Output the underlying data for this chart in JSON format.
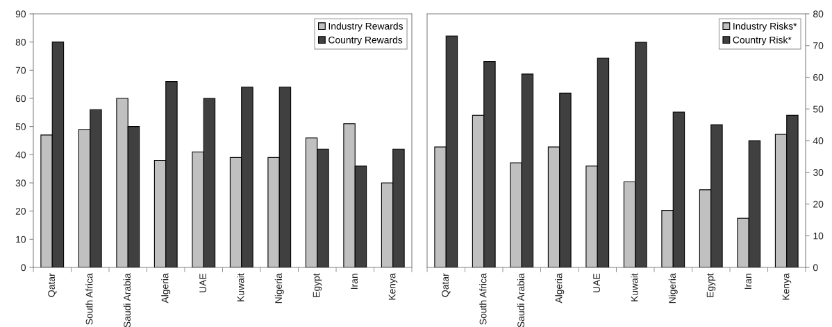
{
  "chart_data": [
    {
      "type": "bar",
      "categories": [
        "Qatar",
        "South Africa",
        "Saudi Arabia",
        "Algeria",
        "UAE",
        "Kuwait",
        "Nigeria",
        "Egypt",
        "Iran",
        "Kenya"
      ],
      "series": [
        {
          "name": "Industry Rewards",
          "color": "#c0c0c0",
          "values": [
            47,
            49,
            60,
            38,
            41,
            39,
            39,
            46,
            51,
            30
          ]
        },
        {
          "name": "Country Rewards",
          "color": "#404040",
          "values": [
            80,
            56,
            50,
            66,
            60,
            64,
            64,
            42,
            36,
            42
          ]
        }
      ],
      "ylim": [
        0,
        90
      ],
      "yticks": [
        0,
        10,
        20,
        30,
        40,
        50,
        60,
        70,
        80,
        90
      ],
      "legend": "top right"
    },
    {
      "type": "bar",
      "categories": [
        "Qatar",
        "South Africa",
        "Saudi Arabia",
        "Algeria",
        "UAE",
        "Kuwait",
        "Nigeria",
        "Egypt",
        "Iran",
        "Kenya"
      ],
      "series": [
        {
          "name": "Industry Risks*",
          "color": "#c0c0c0",
          "axis": "y2",
          "values": [
            38,
            48,
            33,
            38,
            32,
            27,
            18,
            24.5,
            15.5,
            42
          ]
        },
        {
          "name": "Country Risk*",
          "color": "#404040",
          "axis": "y2",
          "values": [
            73,
            65,
            61,
            55,
            66,
            71,
            49,
            45,
            40,
            48
          ]
        }
      ],
      "y2lim": [
        0,
        80
      ],
      "y2ticks": [
        0,
        10,
        20,
        30,
        40,
        50,
        60,
        70,
        80
      ],
      "legend": "top right"
    }
  ]
}
